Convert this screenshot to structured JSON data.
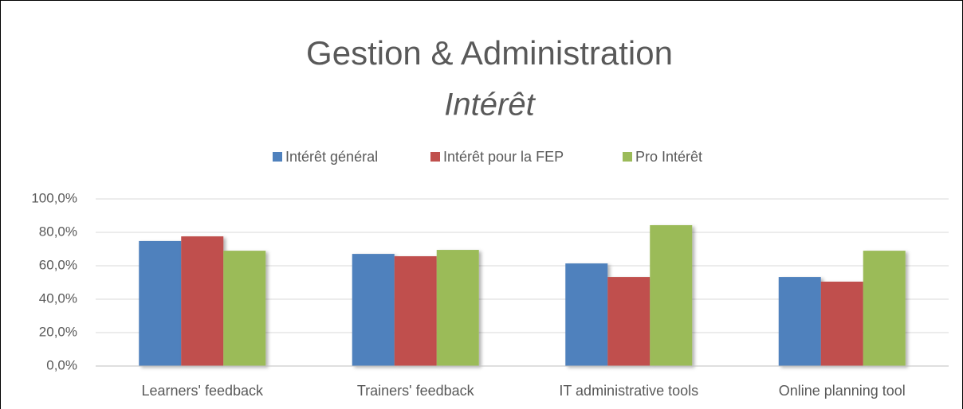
{
  "chart_data": {
    "type": "bar",
    "title": "Gestion & Administration",
    "subtitle": "Intérêt",
    "categories": [
      "Learners' feedback",
      "Trainers' feedback",
      "IT administrative tools",
      "Online planning tool"
    ],
    "series": [
      {
        "name": "Intérêt général",
        "color": "#4f81bd",
        "values": [
          74.8,
          67.1,
          61.4,
          53.3
        ]
      },
      {
        "name": "Intérêt pour la FEP",
        "color": "#c0504d",
        "values": [
          77.6,
          65.7,
          53.3,
          50.5
        ]
      },
      {
        "name": "Pro Intérêt",
        "color": "#9bbb59",
        "values": [
          69.0,
          69.5,
          84.3,
          69.0
        ]
      }
    ],
    "ylim": [
      0,
      100
    ],
    "yticks": [
      {
        "value": 0,
        "label": "0,0%"
      },
      {
        "value": 20,
        "label": "20,0%"
      },
      {
        "value": 40,
        "label": "40,0%"
      },
      {
        "value": 60,
        "label": "60,0%"
      },
      {
        "value": 80,
        "label": "80,0%"
      },
      {
        "value": 100,
        "label": "100,0%"
      }
    ],
    "grid": true,
    "legend": "top"
  }
}
